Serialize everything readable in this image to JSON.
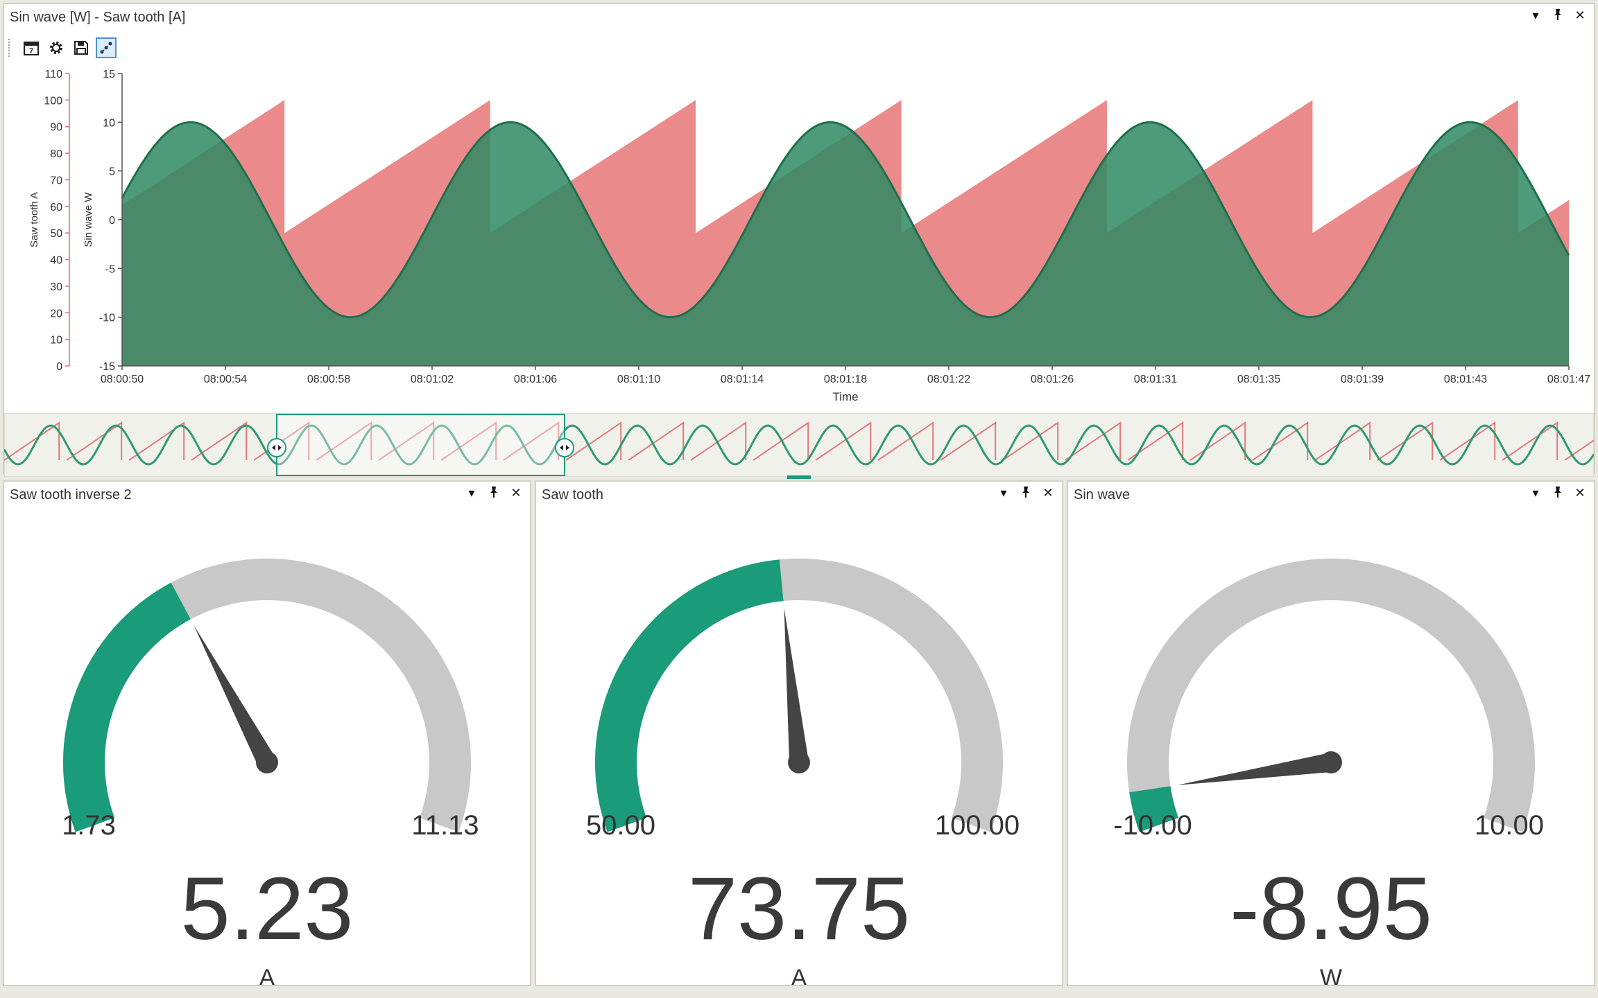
{
  "chart_panel": {
    "title": "Sin wave [W] - Saw tooth [A]",
    "controls": {
      "dropdown": "▾",
      "pin": "📌",
      "close": "✕"
    },
    "toolbar": [
      {
        "icon": "calendar-icon"
      },
      {
        "icon": "gear-icon"
      },
      {
        "icon": "save-icon"
      },
      {
        "icon": "scatter-icon",
        "active": true
      }
    ]
  },
  "chart_data": {
    "type": "area",
    "xlabel": "Time",
    "x_ticks": [
      "08:00:50",
      "08:00:54",
      "08:00:58",
      "08:01:02",
      "08:01:06",
      "08:01:10",
      "08:01:14",
      "08:01:18",
      "08:01:22",
      "08:01:26",
      "08:01:31",
      "08:01:35",
      "08:01:39",
      "08:01:43",
      "08:01:47"
    ],
    "x_range_seconds": [
      0,
      57
    ],
    "y_axes": [
      {
        "label": "Saw tooth A",
        "ticks": [
          0,
          10,
          20,
          30,
          40,
          50,
          60,
          70,
          80,
          90,
          100,
          110
        ],
        "range": [
          0,
          110
        ],
        "color": "#e36a6a"
      },
      {
        "label": "Sin wave W",
        "ticks": [
          -15,
          -10,
          -5,
          0,
          5,
          10,
          15
        ],
        "range": [
          -15,
          15
        ],
        "color": "#1a9b72"
      }
    ],
    "series": [
      {
        "name": "Saw tooth",
        "unit": "A",
        "color": "#e98484",
        "period_s": 8.1,
        "min": 50,
        "max": 100,
        "first_drop_s": 6.4
      },
      {
        "name": "Sin wave",
        "unit": "W",
        "color": "#2e8a63",
        "amplitude": 10,
        "period_s": 12.6,
        "first_peak_s": 2.7
      }
    ]
  },
  "navigator": {
    "range_label": ""
  },
  "gauges": [
    {
      "title": "Saw tooth inverse 2",
      "min_label": "1.73",
      "max_label": "11.13",
      "min": 1.73,
      "max": 11.13,
      "value": 5.23,
      "value_label": "5.23",
      "unit": "A"
    },
    {
      "title": "Saw tooth",
      "min_label": "50.00",
      "max_label": "100.00",
      "min": 50,
      "max": 100,
      "value": 73.75,
      "value_label": "73.75",
      "unit": "A"
    },
    {
      "title": "Sin wave",
      "min_label": "-10.00",
      "max_label": "10.00",
      "min": -10,
      "max": 10,
      "value": -8.95,
      "value_label": "-8.95",
      "unit": "W"
    }
  ],
  "colors": {
    "accent": "#1a9b7a",
    "track": "#c8c8c8",
    "needle": "#444444"
  }
}
